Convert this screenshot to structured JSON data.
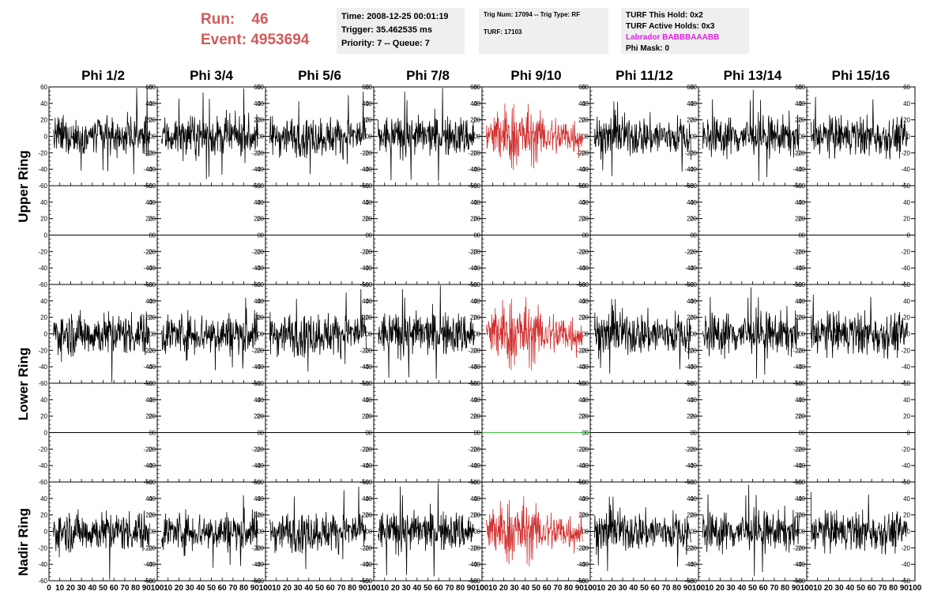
{
  "run": {
    "run_label": "Run:",
    "run_value": "46",
    "event_label": "Event:",
    "event_value": "4953694"
  },
  "time_box": {
    "time": "Time: 2008-12-25 00:01:19",
    "trigger": "Trigger: 35.462535 ms",
    "priority": "Priority: 7 -- Queue: 7"
  },
  "trig_box": {
    "trig": "Trig Num: 17094 -- Trig Type: RF",
    "turf": "TURF: 17103"
  },
  "turf_box": {
    "this_hold": "TURF This Hold: 0x2",
    "active_holds": "TURF Active Holds: 0x3",
    "labrador": "Labrador BABBBAAABB",
    "phi_mask": "Phi Mask: 0"
  },
  "phi_labels": [
    "Phi 1/2",
    "Phi 3/4",
    "Phi 5/6",
    "Phi 7/8",
    "Phi 9/10",
    "Phi 11/12",
    "Phi 13/14",
    "Phi 15/16"
  ],
  "ring_labels": [
    "Upper Ring",
    "Lower Ring",
    "Nadir Ring"
  ],
  "colors": {
    "highlight": "#d03030",
    "run_text": "#d05a5a",
    "labrador": "#e020e0",
    "box_bg": "#efefef",
    "flat_highlight": "#40c040"
  },
  "chart_data": {
    "type": "line",
    "xlim": [
      0,
      100
    ],
    "ylim": [
      -60,
      60
    ],
    "x_ticks": [
      0,
      10,
      20,
      30,
      40,
      50,
      60,
      70,
      80,
      90,
      100
    ],
    "x_tick_labels": [
      "0",
      "10",
      "20",
      "30",
      "40",
      "50",
      "60",
      "70",
      "80",
      "90",
      "100"
    ],
    "y_ticks": [
      -60,
      -40,
      -20,
      0,
      20,
      40,
      60
    ],
    "y_tick_labels": [
      "-60",
      "-40",
      "-20",
      "0",
      "20",
      "40",
      "60"
    ],
    "highlighted_column": 4,
    "rows": [
      {
        "ring": "Upper Ring",
        "kind": "signal",
        "amplitude": 12
      },
      {
        "ring": "Upper Ring",
        "kind": "flat",
        "amplitude": 0
      },
      {
        "ring": "Lower Ring",
        "kind": "signal",
        "amplitude": 13
      },
      {
        "ring": "Lower Ring",
        "kind": "flat",
        "amplitude": 0
      },
      {
        "ring": "Nadir Ring",
        "kind": "signal",
        "amplitude": 12
      }
    ]
  }
}
